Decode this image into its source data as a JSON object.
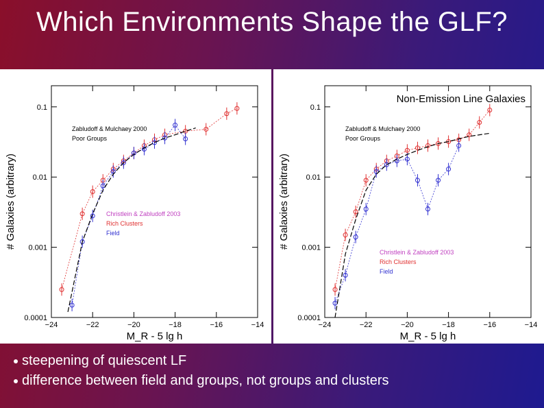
{
  "slide": {
    "title": "Which Environments Shape the GLF?",
    "bullets": [
      "steepening of quiescent LF",
      "difference between field and groups, not groups and clusters"
    ]
  },
  "colors": {
    "background_left": "#8a0f2a",
    "background_right": "#1e1a90",
    "poor_groups": "#000000",
    "rich_clusters": "#e03030",
    "field": "#3030d0",
    "legend_text_clusters_title": "#c040c0"
  },
  "chart_data": [
    {
      "type": "scatter",
      "title": "",
      "xlabel": "M_R - 5 lg h",
      "ylabel": "# Galaxies (arbitrary)",
      "xlim": [
        -24,
        -14
      ],
      "ylim": [
        0.0001,
        0.2
      ],
      "yscale": "log",
      "x_ticks": [
        -24,
        -22,
        -20,
        -18,
        -16,
        -14
      ],
      "y_ticks": [
        0.0001,
        0.001,
        0.01,
        0.1
      ],
      "x_tick_labels": [
        "−24",
        "−22",
        "−20",
        "−18",
        "−16",
        "−14"
      ],
      "y_tick_labels": [
        "0.0001",
        "0.001",
        "0.01",
        "0.1"
      ],
      "annotations": [
        {
          "text": "Zabludoff & Mulchaey 2000"
        },
        {
          "text": "Poor Groups"
        },
        {
          "text": "Christlein & Zabludoff 2003"
        },
        {
          "text": "Rich Clusters"
        },
        {
          "text": "Field"
        }
      ],
      "series": [
        {
          "name": "Rich Clusters",
          "x": [
            -23.5,
            -22.5,
            -22,
            -21.5,
            -21,
            -20.5,
            -20,
            -19.5,
            -19,
            -18.5,
            -17.5,
            -16.5,
            -15.5,
            -15
          ],
          "y": [
            0.00025,
            0.003,
            0.0062,
            0.009,
            0.013,
            0.017,
            0.022,
            0.028,
            0.034,
            0.04,
            0.045,
            0.048,
            0.08,
            0.095
          ]
        },
        {
          "name": "Field",
          "x": [
            -23,
            -22.5,
            -22,
            -21.5,
            -21,
            -20.5,
            -20,
            -19.5,
            -19,
            -18.5,
            -18,
            -17.5
          ],
          "y": [
            0.00015,
            0.0012,
            0.0028,
            0.0075,
            0.012,
            0.016,
            0.022,
            0.025,
            0.031,
            0.036,
            0.055,
            0.035
          ]
        },
        {
          "name": "Poor Groups",
          "x": [
            -23.2,
            -22.5,
            -22,
            -21.5,
            -21,
            -20.5,
            -20,
            -19.5,
            -19,
            -18.5,
            -18,
            -17.5,
            -17
          ],
          "y": [
            0.00012,
            0.0012,
            0.003,
            0.0065,
            0.011,
            0.016,
            0.021,
            0.026,
            0.031,
            0.036,
            0.04,
            0.045,
            0.05
          ]
        }
      ]
    },
    {
      "type": "scatter",
      "title": "Non-Emission Line Galaxies",
      "xlabel": "M_R - 5 lg h",
      "ylabel": "# Galaxies (arbitrary)",
      "xlim": [
        -24,
        -14
      ],
      "ylim": [
        0.0001,
        0.2
      ],
      "yscale": "log",
      "x_ticks": [
        -24,
        -22,
        -20,
        -18,
        -16,
        -14
      ],
      "y_ticks": [
        0.0001,
        0.001,
        0.01,
        0.1
      ],
      "x_tick_labels": [
        "−24",
        "−22",
        "−20",
        "−18",
        "−16",
        "−14"
      ],
      "y_tick_labels": [
        "0.0001",
        "0.001",
        "0.01",
        "0.1"
      ],
      "annotations": [
        {
          "text": "Zabludoff & Mulchaey 2000"
        },
        {
          "text": "Poor Groups"
        },
        {
          "text": "Christlein & Zabludoff 2003"
        },
        {
          "text": "Rich Clusters"
        },
        {
          "text": "Field"
        }
      ],
      "series": [
        {
          "name": "Rich Clusters",
          "x": [
            -23.5,
            -23,
            -22.5,
            -22,
            -21.5,
            -21,
            -20.5,
            -20,
            -19.5,
            -19,
            -18.5,
            -18,
            -17.5,
            -17,
            -16.5,
            -16
          ],
          "y": [
            0.00025,
            0.0015,
            0.0032,
            0.009,
            0.013,
            0.017,
            0.02,
            0.024,
            0.026,
            0.028,
            0.03,
            0.032,
            0.034,
            0.04,
            0.06,
            0.09
          ]
        },
        {
          "name": "Field",
          "x": [
            -23.5,
            -23,
            -22.5,
            -22,
            -21.5,
            -21,
            -20.5,
            -20,
            -19.5,
            -19,
            -18.5,
            -18,
            -17.5
          ],
          "y": [
            0.00016,
            0.0004,
            0.0014,
            0.0035,
            0.012,
            0.015,
            0.017,
            0.018,
            0.009,
            0.0035,
            0.009,
            0.013,
            0.028
          ]
        },
        {
          "name": "Poor Groups",
          "x": [
            -23.5,
            -23,
            -22.5,
            -22,
            -21.5,
            -21,
            -20.5,
            -20,
            -19.5,
            -19,
            -18.5,
            -18,
            -17.5,
            -17,
            -16.5,
            -16
          ],
          "y": [
            0.0001,
            0.0008,
            0.0025,
            0.0065,
            0.011,
            0.015,
            0.018,
            0.021,
            0.024,
            0.027,
            0.03,
            0.032,
            0.035,
            0.038,
            0.04,
            0.042
          ]
        }
      ]
    }
  ]
}
